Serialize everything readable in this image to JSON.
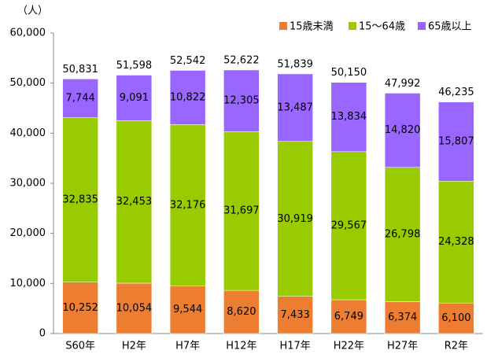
{
  "chart_data": {
    "type": "stacked_bar",
    "y_unit_label": "（人）",
    "categories": [
      "S60年",
      "H2年",
      "H7年",
      "H12年",
      "H17年",
      "H22年",
      "H27年",
      "R2年"
    ],
    "series": [
      {
        "name": "15歳未満",
        "color": "#ed7d31",
        "values": [
          10252,
          10054,
          9544,
          8620,
          7433,
          6749,
          6374,
          6100
        ],
        "value_labels": [
          "10,252",
          "10,054",
          "9,544",
          "8,620",
          "7,433",
          "6,749",
          "6,374",
          "6,100"
        ]
      },
      {
        "name": "15～64歳",
        "color": "#99cc00",
        "values": [
          32835,
          32453,
          32176,
          31697,
          30919,
          29567,
          26798,
          24328
        ],
        "value_labels": [
          "32,835",
          "32,453",
          "32,176",
          "31,697",
          "30,919",
          "29,567",
          "26,798",
          "24,328"
        ]
      },
      {
        "name": "65歳以上",
        "color": "#9966ff",
        "values": [
          7744,
          9091,
          10822,
          12305,
          13487,
          13834,
          14820,
          15807
        ],
        "value_labels": [
          "7,744",
          "9,091",
          "10,822",
          "12,305",
          "13,487",
          "13,834",
          "14,820",
          "15,807"
        ]
      }
    ],
    "totals": {
      "values": [
        50831,
        51598,
        52542,
        52622,
        51839,
        50150,
        47992,
        46235
      ],
      "value_labels": [
        "50,831",
        "51,598",
        "52,542",
        "52,622",
        "51,839",
        "50,150",
        "47,992",
        "46,235"
      ]
    },
    "ylim": [
      0,
      60000
    ],
    "yticks": [
      0,
      {
        "value": 10000,
        "label": "10,000"
      },
      {
        "value": 20000,
        "label": "20,000"
      },
      {
        "value": 30000,
        "label": "30,000"
      },
      {
        "value": 40000,
        "label": "40,000"
      },
      {
        "value": 50000,
        "label": "50,000"
      },
      {
        "value": 60000,
        "label": "60,000"
      }
    ],
    "grid": false,
    "legend": "top-right"
  }
}
